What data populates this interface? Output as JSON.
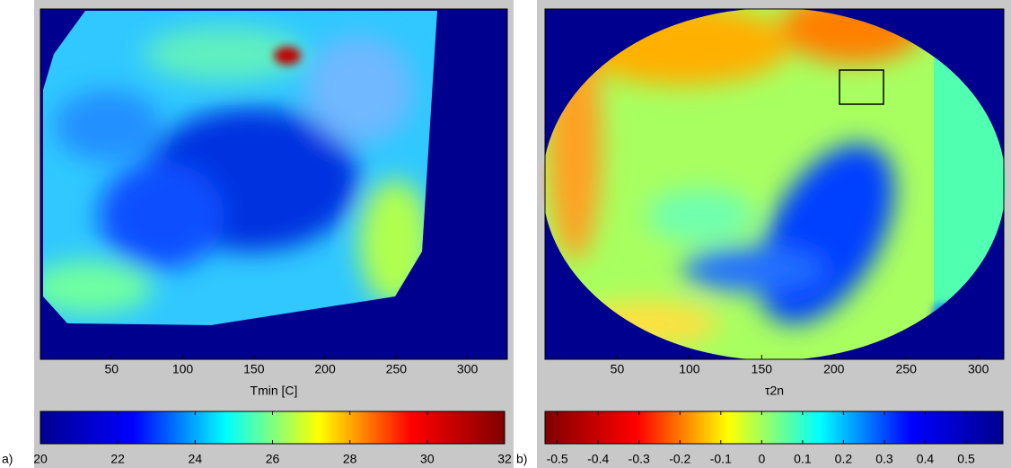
{
  "chart_data": [
    {
      "type": "heatmap",
      "panel_label": "a)",
      "xlabel": "Tmin [C]",
      "xlim": [
        0,
        328
      ],
      "xticks": [
        50,
        100,
        150,
        200,
        250,
        300
      ],
      "clim": [
        20,
        32
      ],
      "cticks": [
        20,
        22,
        24,
        26,
        28,
        30,
        32
      ],
      "colormap": [
        "#00008f",
        "#0000ff",
        "#00ffff",
        "#ffff00",
        "#ff0000",
        "#800000"
      ],
      "reverse": false
    },
    {
      "type": "heatmap",
      "panel_label": "b)",
      "xlabel": "τ2n",
      "xlim": [
        0,
        317.6
      ],
      "xticks": [
        50,
        100,
        150,
        200,
        250,
        300
      ],
      "clim": [
        -0.53,
        0.59
      ],
      "cticks": [
        -0.5,
        -0.4,
        -0.3,
        -0.2,
        -0.1,
        0,
        0.1,
        0.2,
        0.3,
        0.4,
        0.5
      ],
      "colormap": [
        "#00008f",
        "#0000ff",
        "#00ffff",
        "#ffff00",
        "#ff0000",
        "#800000"
      ],
      "reverse": true
    }
  ]
}
